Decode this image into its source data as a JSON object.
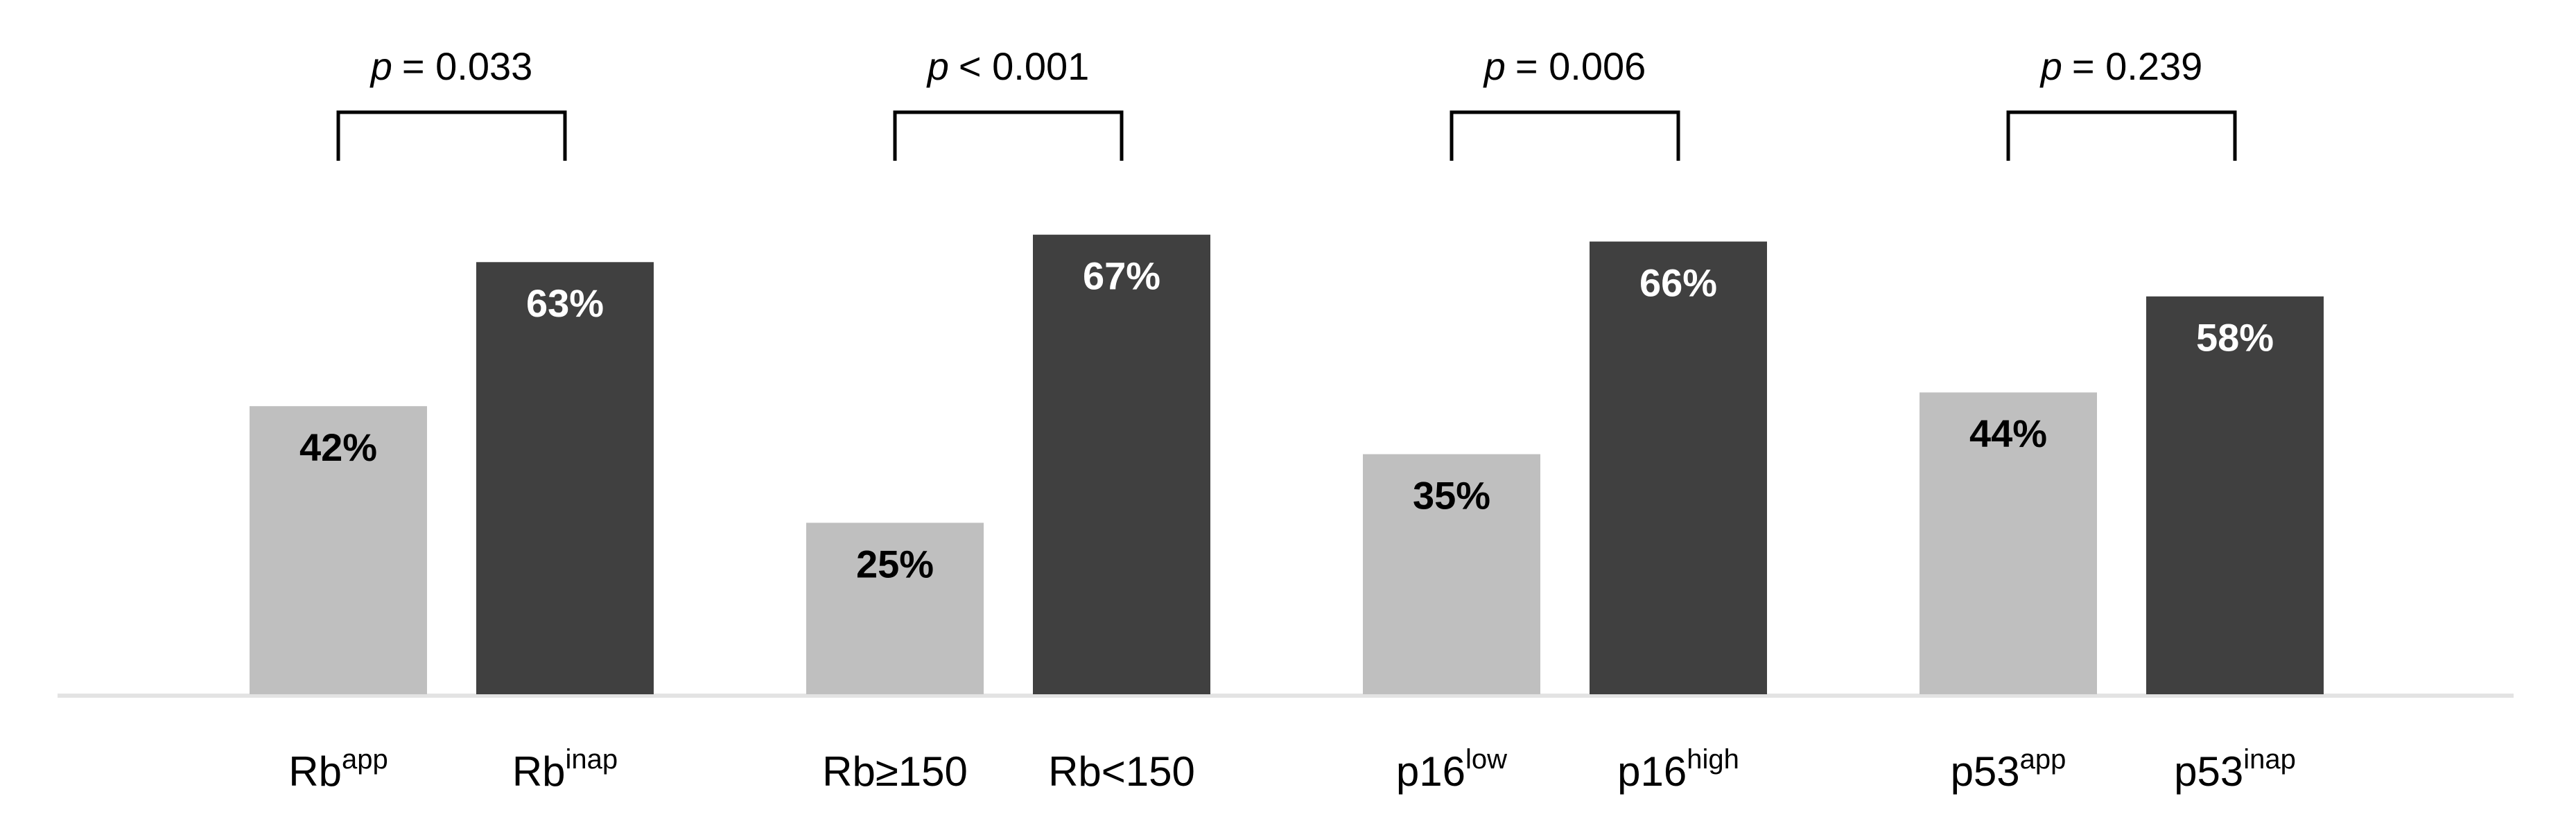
{
  "chart_data": {
    "type": "bar",
    "categories": [
      "Rb",
      "Rb",
      "Rb≥150",
      "Rb<150",
      "p16",
      "p16",
      "p53",
      "p53"
    ],
    "category_superscripts": [
      "app",
      "inap",
      null,
      null,
      "low",
      "high",
      "app",
      "inap"
    ],
    "values": [
      42,
      63,
      25,
      67,
      35,
      66,
      44,
      58
    ],
    "value_labels": [
      "42%",
      "63%",
      "25%",
      "67%",
      "35%",
      "66%",
      "44%",
      "58%"
    ],
    "colors": [
      "#bfbfbf",
      "#404040",
      "#bfbfbf",
      "#404040",
      "#bfbfbf",
      "#404040",
      "#bfbfbf",
      "#404040"
    ],
    "label_colors": [
      "#000000",
      "#ffffff",
      "#000000",
      "#ffffff",
      "#000000",
      "#ffffff",
      "#000000",
      "#ffffff"
    ],
    "annotations": [
      {
        "symbol": "p",
        "text": "= 0.033"
      },
      {
        "symbol": "p",
        "text": "< 0.001"
      },
      {
        "symbol": "p",
        "text": "= 0.006"
      },
      {
        "symbol": "p",
        "text": "= 0.239"
      }
    ]
  }
}
